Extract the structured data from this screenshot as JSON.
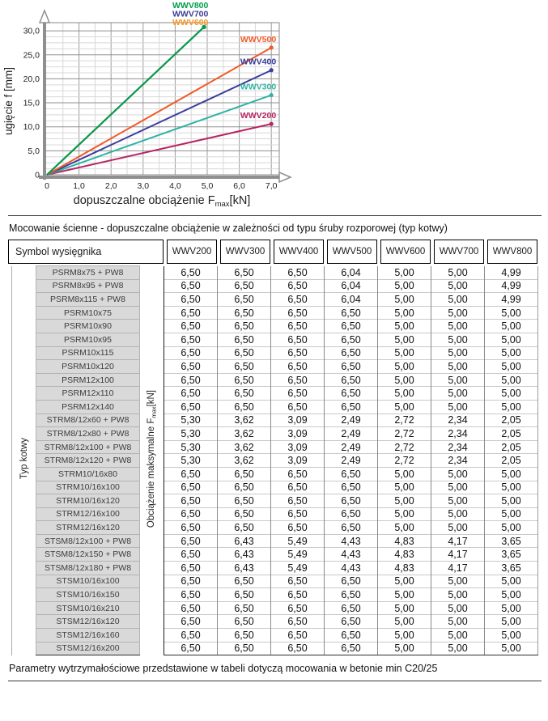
{
  "chart": {
    "ylabel": "ugięcie f [mm]",
    "xlabel_parts": [
      "dopuszczalne obciążenie F",
      "max",
      "[kN]"
    ],
    "x_tick_labels": [
      "0",
      "1,0",
      "2,0",
      "3,0",
      "4,0",
      "5,0",
      "6,0",
      "7,0"
    ],
    "y_tick_labels": [
      "0",
      "5,0",
      "10,0",
      "15,0",
      "20,0",
      "25,0",
      "30,0"
    ]
  },
  "chart_data": {
    "type": "line",
    "title": "",
    "xlabel": "dopuszczalne obciążenie Fmax [kN]",
    "ylabel": "ugięcie f [mm]",
    "xlim": [
      0,
      7.25
    ],
    "ylim": [
      0,
      31.5
    ],
    "x_tick_step": 1.0,
    "y_tick_step": 5.0,
    "minor_x_step": 0.5,
    "minor_y_step": 1.25,
    "grid": true,
    "legend_position": "labels-at-line-ends",
    "series": [
      {
        "name": "WWV800",
        "color": "#00A04B",
        "points": [
          [
            0,
            0
          ],
          [
            4.9,
            30.8
          ]
        ]
      },
      {
        "name": "WWV700",
        "color": "#3A3E9C",
        "points": [
          [
            0,
            0
          ],
          [
            4.9,
            30.8
          ]
        ]
      },
      {
        "name": "WWV600",
        "color": "#F7941D",
        "points": [
          [
            0,
            0
          ],
          [
            4.9,
            30.8
          ]
        ]
      },
      {
        "name": "WWV500",
        "color": "#F05A28",
        "points": [
          [
            0,
            0
          ],
          [
            7.0,
            26.5
          ]
        ]
      },
      {
        "name": "WWV400",
        "color": "#3A3E9C",
        "points": [
          [
            0,
            0
          ],
          [
            7.0,
            21.8
          ]
        ]
      },
      {
        "name": "WWV300",
        "color": "#2FB3A4",
        "points": [
          [
            0,
            0
          ],
          [
            7.0,
            16.6
          ]
        ]
      },
      {
        "name": "WWV200",
        "color": "#B72562",
        "points": [
          [
            0,
            0
          ],
          [
            7.0,
            10.6
          ]
        ]
      }
    ]
  },
  "caption": "Mocowanie ścienne - dopuszczalne obciążenie w zależności od typu śruby rozporowej (typ kotwy)",
  "table": {
    "corner_header": "Symbol wysięgnika",
    "col_headers": [
      "WWV200",
      "WWV300",
      "WWV400",
      "WWV500",
      "WWV600",
      "WWV700",
      "WWV800"
    ],
    "left_label": "Typ kotwy",
    "value_label_parts": [
      "Obciążenie maksymalne F",
      "max",
      "[kN]"
    ],
    "rows": [
      {
        "label": "PSRM8x75 + PW8",
        "values": [
          "6,50",
          "6,50",
          "6,50",
          "6,04",
          "5,00",
          "5,00",
          "4,99"
        ]
      },
      {
        "label": "PSRM8x95 + PW8",
        "values": [
          "6,50",
          "6,50",
          "6,50",
          "6,04",
          "5,00",
          "5,00",
          "4,99"
        ]
      },
      {
        "label": "PSRM8x115 + PW8",
        "values": [
          "6,50",
          "6,50",
          "6,50",
          "6,04",
          "5,00",
          "5,00",
          "4,99"
        ]
      },
      {
        "label": "PSRM10x75",
        "values": [
          "6,50",
          "6,50",
          "6,50",
          "6,50",
          "5,00",
          "5,00",
          "5,00"
        ]
      },
      {
        "label": "PSRM10x90",
        "values": [
          "6,50",
          "6,50",
          "6,50",
          "6,50",
          "5,00",
          "5,00",
          "5,00"
        ]
      },
      {
        "label": "PSRM10x95",
        "values": [
          "6,50",
          "6,50",
          "6,50",
          "6,50",
          "5,00",
          "5,00",
          "5,00"
        ]
      },
      {
        "label": "PSRM10x115",
        "values": [
          "6,50",
          "6,50",
          "6,50",
          "6,50",
          "5,00",
          "5,00",
          "5,00"
        ]
      },
      {
        "label": "PSRM10x120",
        "values": [
          "6,50",
          "6,50",
          "6,50",
          "6,50",
          "5,00",
          "5,00",
          "5,00"
        ]
      },
      {
        "label": "PSRM12x100",
        "values": [
          "6,50",
          "6,50",
          "6,50",
          "6,50",
          "5,00",
          "5,00",
          "5,00"
        ]
      },
      {
        "label": "PSRM12x110",
        "values": [
          "6,50",
          "6,50",
          "6,50",
          "6,50",
          "5,00",
          "5,00",
          "5,00"
        ]
      },
      {
        "label": "PSRM12x140",
        "values": [
          "6,50",
          "6,50",
          "6,50",
          "6,50",
          "5,00",
          "5,00",
          "5,00"
        ]
      },
      {
        "label": "STRM8/12x60 + PW8",
        "values": [
          "5,30",
          "3,62",
          "3,09",
          "2,49",
          "2,72",
          "2,34",
          "2,05"
        ]
      },
      {
        "label": "STRM8/12x80 + PW8",
        "values": [
          "5,30",
          "3,62",
          "3,09",
          "2,49",
          "2,72",
          "2,34",
          "2,05"
        ]
      },
      {
        "label": "STRM8/12x100 + PW8",
        "values": [
          "5,30",
          "3,62",
          "3,09",
          "2,49",
          "2,72",
          "2,34",
          "2,05"
        ]
      },
      {
        "label": "STRM8/12x120 + PW8",
        "values": [
          "5,30",
          "3,62",
          "3,09",
          "2,49",
          "2,72",
          "2,34",
          "2,05"
        ]
      },
      {
        "label": "STRM10/16x80",
        "values": [
          "6,50",
          "6,50",
          "6,50",
          "6,50",
          "5,00",
          "5,00",
          "5,00"
        ]
      },
      {
        "label": "STRM10/16x100",
        "values": [
          "6,50",
          "6,50",
          "6,50",
          "6,50",
          "5,00",
          "5,00",
          "5,00"
        ]
      },
      {
        "label": "STRM10/16x120",
        "values": [
          "6,50",
          "6,50",
          "6,50",
          "6,50",
          "5,00",
          "5,00",
          "5,00"
        ]
      },
      {
        "label": "STRM12/16x100",
        "values": [
          "6,50",
          "6,50",
          "6,50",
          "6,50",
          "5,00",
          "5,00",
          "5,00"
        ]
      },
      {
        "label": "STRM12/16x120",
        "values": [
          "6,50",
          "6,50",
          "6,50",
          "6,50",
          "5,00",
          "5,00",
          "5,00"
        ]
      },
      {
        "label": "STSM8/12x100 + PW8",
        "values": [
          "6,50",
          "6,43",
          "5,49",
          "4,43",
          "4,83",
          "4,17",
          "3,65"
        ]
      },
      {
        "label": "STSM8/12x150 + PW8",
        "values": [
          "6,50",
          "6,43",
          "5,49",
          "4,43",
          "4,83",
          "4,17",
          "3,65"
        ]
      },
      {
        "label": "STSM8/12x180 + PW8",
        "values": [
          "6,50",
          "6,43",
          "5,49",
          "4,43",
          "4,83",
          "4,17",
          "3,65"
        ]
      },
      {
        "label": "STSM10/16x100",
        "values": [
          "6,50",
          "6,50",
          "6,50",
          "6,50",
          "5,00",
          "5,00",
          "5,00"
        ]
      },
      {
        "label": "STSM10/16x150",
        "values": [
          "6,50",
          "6,50",
          "6,50",
          "6,50",
          "5,00",
          "5,00",
          "5,00"
        ]
      },
      {
        "label": "STSM10/16x210",
        "values": [
          "6,50",
          "6,50",
          "6,50",
          "6,50",
          "5,00",
          "5,00",
          "5,00"
        ]
      },
      {
        "label": "STSM12/16x120",
        "values": [
          "6,50",
          "6,50",
          "6,50",
          "6,50",
          "5,00",
          "5,00",
          "5,00"
        ]
      },
      {
        "label": "STSM12/16x160",
        "values": [
          "6,50",
          "6,50",
          "6,50",
          "6,50",
          "5,00",
          "5,00",
          "5,00"
        ]
      },
      {
        "label": "STSM12/16x200",
        "values": [
          "6,50",
          "6,50",
          "6,50",
          "6,50",
          "5,00",
          "5,00",
          "5,00"
        ]
      }
    ]
  },
  "footer": "Parametry wytrzymałościowe przedstawione w tabeli dotyczą mocowania w betonie min C20/25"
}
